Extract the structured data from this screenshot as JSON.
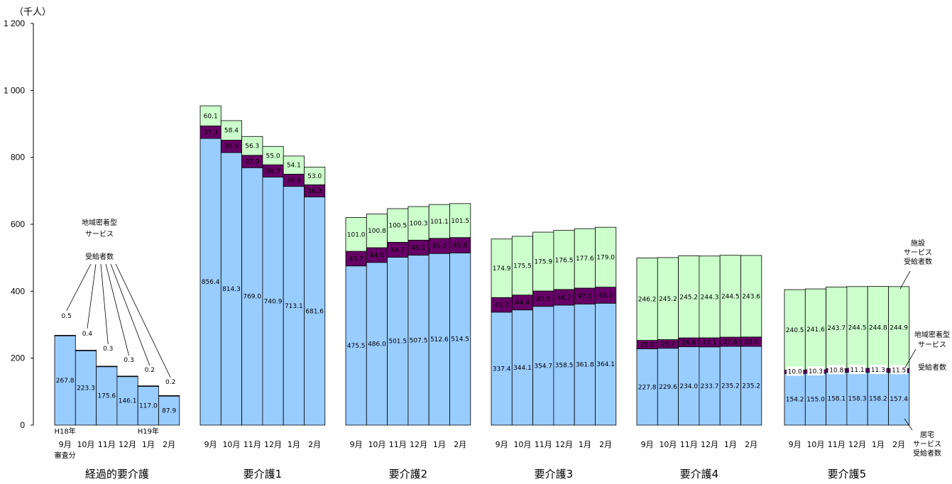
{
  "chart_data": {
    "type": "bar",
    "stacked": true,
    "unit_label": "（千人）",
    "ylim": [
      0,
      1200
    ],
    "yticks": [
      "0",
      "200",
      "400",
      "600",
      "800",
      "1 000",
      "1 200"
    ],
    "yticks_values": [
      0,
      200,
      400,
      600,
      800,
      1000,
      1200
    ],
    "colors": {
      "home": "#99ccff",
      "community": "#660066",
      "facility": "#ccffcc",
      "community_label_bg": "#ffffff",
      "text_on_dark": "#ffffff",
      "text_on_light": "#000000",
      "axis": "#000000"
    },
    "series_names": {
      "home": "居宅サービス受給者数",
      "community": "地域密着型サービス受給者数",
      "facility": "施設サービス受給者数"
    },
    "groups": [
      {
        "name": "経過的要介護",
        "months": [
          "9月",
          "10月",
          "11月",
          "12月",
          "1月",
          "2月"
        ],
        "home": [
          267.8,
          223.3,
          175.6,
          146.1,
          117.0,
          87.9
        ],
        "home_labels": [
          "267.8",
          "223.3",
          "175.6",
          "146.1",
          "117.0",
          "87.9"
        ],
        "community": [
          0.5,
          0.4,
          0.3,
          0.3,
          0.2,
          0.2
        ],
        "community_labels": [
          "0.5",
          "0.4",
          "0.3",
          "0.3",
          "0.2",
          "0.2"
        ],
        "facility": [
          0,
          0,
          0,
          0,
          0,
          0
        ],
        "facility_labels": [
          "",
          "",
          "",
          "",
          "",
          ""
        ]
      },
      {
        "name": "要介護1",
        "months": [
          "9月",
          "10月",
          "11月",
          "12月",
          "1月",
          "2月"
        ],
        "home": [
          856.4,
          814.3,
          769.0,
          740.9,
          713.1,
          681.6
        ],
        "home_labels": [
          "856.4",
          "814.3",
          "769.0",
          "740.9",
          "713.1",
          "681.6"
        ],
        "community": [
          37.3,
          36.9,
          37.0,
          36.7,
          36.6,
          36.3
        ],
        "community_labels": [
          "37.3",
          "36.9",
          "37.0",
          "36.7",
          "36.6",
          "36.3"
        ],
        "facility": [
          60.1,
          58.4,
          56.3,
          55.0,
          54.1,
          53.0
        ],
        "facility_labels": [
          "60.1",
          "58.4",
          "56.3",
          "55.0",
          "54.1",
          "53.0"
        ]
      },
      {
        "name": "要介護2",
        "months": [
          "9月",
          "10月",
          "11月",
          "12月",
          "1月",
          "2月"
        ],
        "home": [
          475.5,
          486.0,
          501.5,
          507.5,
          512.6,
          514.5
        ],
        "home_labels": [
          "475.5",
          "486.0",
          "501.5",
          "507.5",
          "512.6",
          "514.5"
        ],
        "community": [
          43.7,
          44.0,
          44.7,
          45.1,
          45.3,
          45.8
        ],
        "community_labels": [
          "43.7",
          "44.0",
          "44.7",
          "45.1",
          "45.3",
          "45.8"
        ],
        "facility": [
          101.0,
          100.8,
          100.5,
          100.3,
          101.1,
          101.5
        ],
        "facility_labels": [
          "101.0",
          "100.8",
          "100.5",
          "100.3",
          "101.1",
          "101.5"
        ]
      },
      {
        "name": "要介護3",
        "months": [
          "9月",
          "10月",
          "11月",
          "12月",
          "1月",
          "2月"
        ],
        "home": [
          337.4,
          344.1,
          354.7,
          358.5,
          361.8,
          364.1
        ],
        "home_labels": [
          "337.4",
          "344.1",
          "354.7",
          "358.5",
          "361.8",
          "364.1"
        ],
        "community": [
          43.7,
          44.4,
          45.9,
          46.7,
          47.5,
          48.0
        ],
        "community_labels": [
          "43.7",
          "44.4",
          "45.9",
          "46.7",
          "47.5",
          "48.0"
        ],
        "facility": [
          174.9,
          175.5,
          175.9,
          176.5,
          177.6,
          179.0
        ],
        "facility_labels": [
          "174.9",
          "175.5",
          "175.9",
          "176.5",
          "177.6",
          "179.0"
        ]
      },
      {
        "name": "要介護4",
        "months": [
          "9月",
          "10月",
          "11月",
          "12月",
          "1月",
          "2月"
        ],
        "home": [
          227.8,
          229.6,
          234.0,
          233.7,
          235.2,
          235.2
        ],
        "home_labels": [
          "227.8",
          "229.6",
          "234.0",
          "233.7",
          "235.2",
          "235.2"
        ],
        "community": [
          25.3,
          25.7,
          26.6,
          27.1,
          27.6,
          28.0
        ],
        "community_labels": [
          "25.3",
          "25.7",
          "26.6",
          "27.1",
          "27.6",
          "28.0"
        ],
        "facility": [
          246.2,
          245.2,
          245.2,
          244.3,
          244.5,
          243.6
        ],
        "facility_labels": [
          "246.2",
          "245.2",
          "245.2",
          "244.3",
          "244.5",
          "243.6"
        ]
      },
      {
        "name": "要介護5",
        "months": [
          "9月",
          "10月",
          "11月",
          "12月",
          "1月",
          "2月"
        ],
        "home": [
          154.2,
          155.0,
          158.1,
          158.3,
          158.2,
          157.4
        ],
        "home_labels": [
          "154.2",
          "155.0",
          "158.1",
          "158.3",
          "158.2",
          "157.4"
        ],
        "community": [
          10.0,
          10.3,
          10.8,
          11.1,
          11.3,
          11.5
        ],
        "community_labels": [
          "10.0",
          "10.3",
          "10.8",
          "11.1",
          "11.3",
          "11.5"
        ],
        "facility": [
          240.5,
          241.6,
          243.7,
          244.5,
          244.8,
          244.9
        ],
        "facility_labels": [
          "240.5",
          "241.6",
          "243.7",
          "244.5",
          "244.8",
          "244.9"
        ]
      }
    ],
    "annotations": {
      "first_group_top": "H18年",
      "first_group_bottom": "審査分",
      "fifth_bar_top": "H19年",
      "community_label_left": [
        "地域密着型",
        "サービス",
        "",
        "受給者数"
      ],
      "facility_label_right": [
        "施設",
        "サービス",
        "受給者数"
      ],
      "community_label_right": [
        "地域密着型",
        "サービス",
        "受給者数"
      ],
      "home_label_right": [
        "居宅",
        "サービス",
        "受給者数"
      ]
    }
  }
}
